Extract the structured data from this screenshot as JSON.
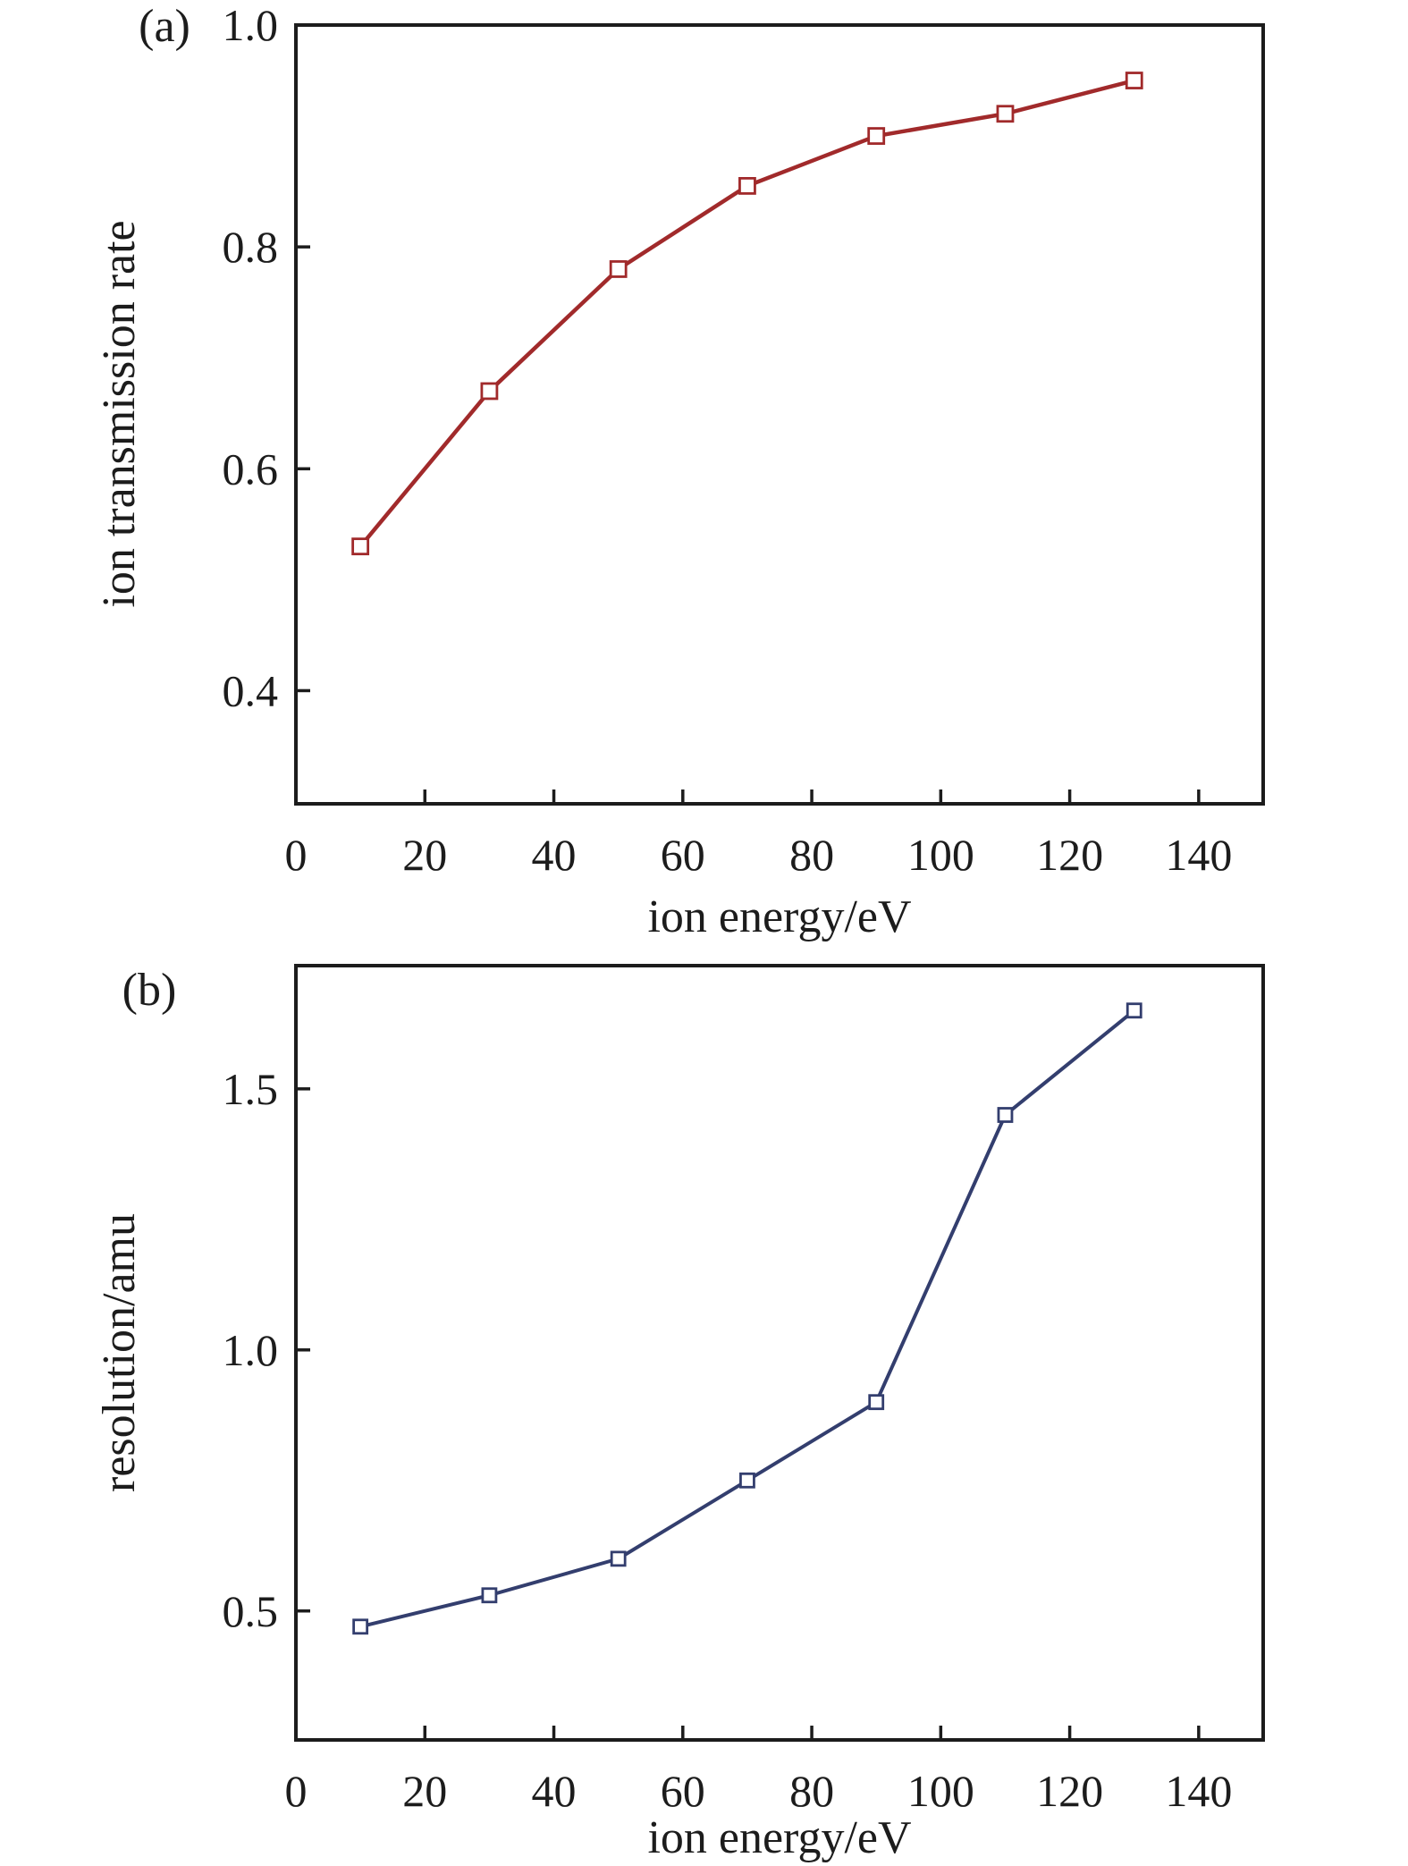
{
  "figure": {
    "background": "#ffffff",
    "axis_color": "#1c1c1c",
    "text_color": "#1c1c1c"
  },
  "chart_data": [
    {
      "type": "line",
      "panel_label": "(a)",
      "title": "",
      "xlabel": "ion energy/eV",
      "ylabel": "ion transmission rate",
      "x": [
        10,
        30,
        50,
        70,
        90,
        110,
        130
      ],
      "values": [
        0.53,
        0.67,
        0.78,
        0.855,
        0.9,
        0.92,
        0.95
      ],
      "xlim": [
        0,
        150
      ],
      "ylim": [
        0.298,
        1.0
      ],
      "xticks": [
        0,
        20,
        40,
        60,
        80,
        100,
        120,
        140
      ],
      "xtick_labels": [
        "0",
        "20",
        "40",
        "60",
        "80",
        "100",
        "120",
        "140"
      ],
      "yticks": [
        0.4,
        0.6,
        0.8,
        1.0
      ],
      "ytick_labels": [
        "0.4",
        "0.6",
        "0.8",
        "1.0"
      ],
      "grid": false,
      "legend": null,
      "line_color": "#a12a2b",
      "line_width": 4.5,
      "marker": "open-square",
      "marker_size": 17,
      "marker_fill": "#ffffff"
    },
    {
      "type": "line",
      "panel_label": "(b)",
      "title": "",
      "xlabel": "ion energy/eV",
      "ylabel": "resolution/amu",
      "x": [
        10,
        30,
        50,
        70,
        90,
        110,
        130
      ],
      "values": [
        0.47,
        0.53,
        0.6,
        0.75,
        0.9,
        1.45,
        1.65
      ],
      "xlim": [
        0,
        150
      ],
      "ylim": [
        0.253,
        1.736
      ],
      "xticks": [
        0,
        20,
        40,
        60,
        80,
        100,
        120,
        140
      ],
      "xtick_labels": [
        "0",
        "20",
        "40",
        "60",
        "80",
        "100",
        "120",
        "140"
      ],
      "yticks": [
        0.5,
        1.0,
        1.5
      ],
      "ytick_labels": [
        "0.5",
        "1.0",
        "1.5"
      ],
      "grid": false,
      "legend": null,
      "line_color": "#333e6e",
      "line_width": 4,
      "marker": "open-square",
      "marker_size": 15,
      "marker_fill": "#ffffff"
    }
  ]
}
